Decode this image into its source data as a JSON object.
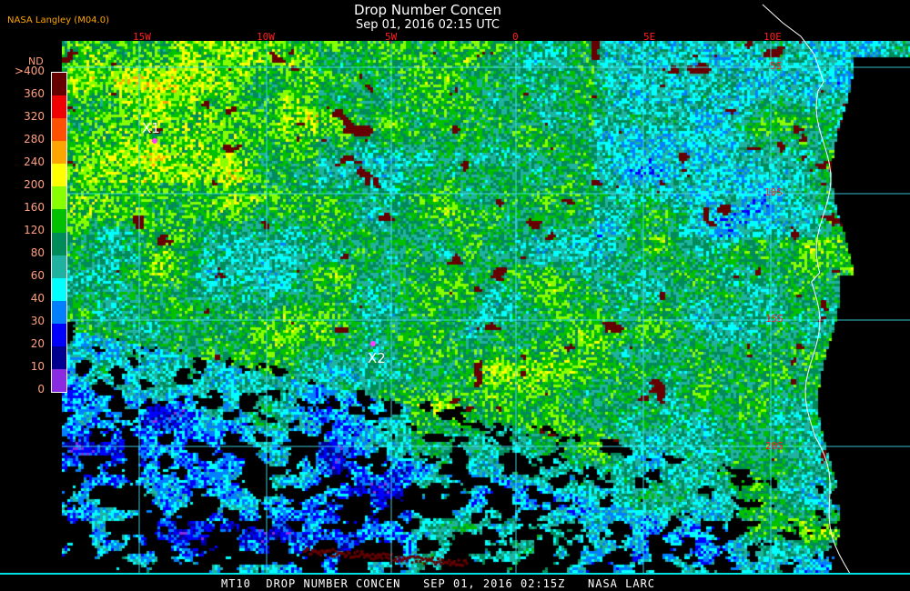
{
  "header": {
    "title": "Drop Number Concen",
    "subtitle": "Sep 01, 2016 02:15 UTC",
    "brand": "NASA Langley (M04.0)"
  },
  "legend": {
    "unit": "ND",
    "labels": [
      ">400",
      "360",
      "320",
      "280",
      "240",
      "200",
      "160",
      "120",
      "80",
      "60",
      "40",
      "30",
      "20",
      "10",
      "0"
    ],
    "colors": [
      "#660000",
      "#f00000",
      "#ff5000",
      "#ffa500",
      "#ffff00",
      "#88ff00",
      "#00c000",
      "#008b5a",
      "#20b2a0",
      "#00ffff",
      "#0080ff",
      "#0000ff",
      "#000090",
      "#8a2be2"
    ]
  },
  "grid": {
    "color": "#40e0f0",
    "label_color": "#ff2020",
    "longitudes": [
      "15W",
      "10W",
      "5W",
      "0",
      "5E",
      "10E"
    ],
    "latitudes": [
      "5S",
      "10S",
      "15S",
      "20S"
    ]
  },
  "markers": [
    {
      "label": "X1",
      "color": "#ff40ff"
    },
    {
      "label": "X2",
      "color": "#ff40ff"
    }
  ],
  "footer": {
    "text": "MT10  DROP NUMBER CONCEN   SEP 01, 2016 02:15Z   NASA LARC"
  }
}
